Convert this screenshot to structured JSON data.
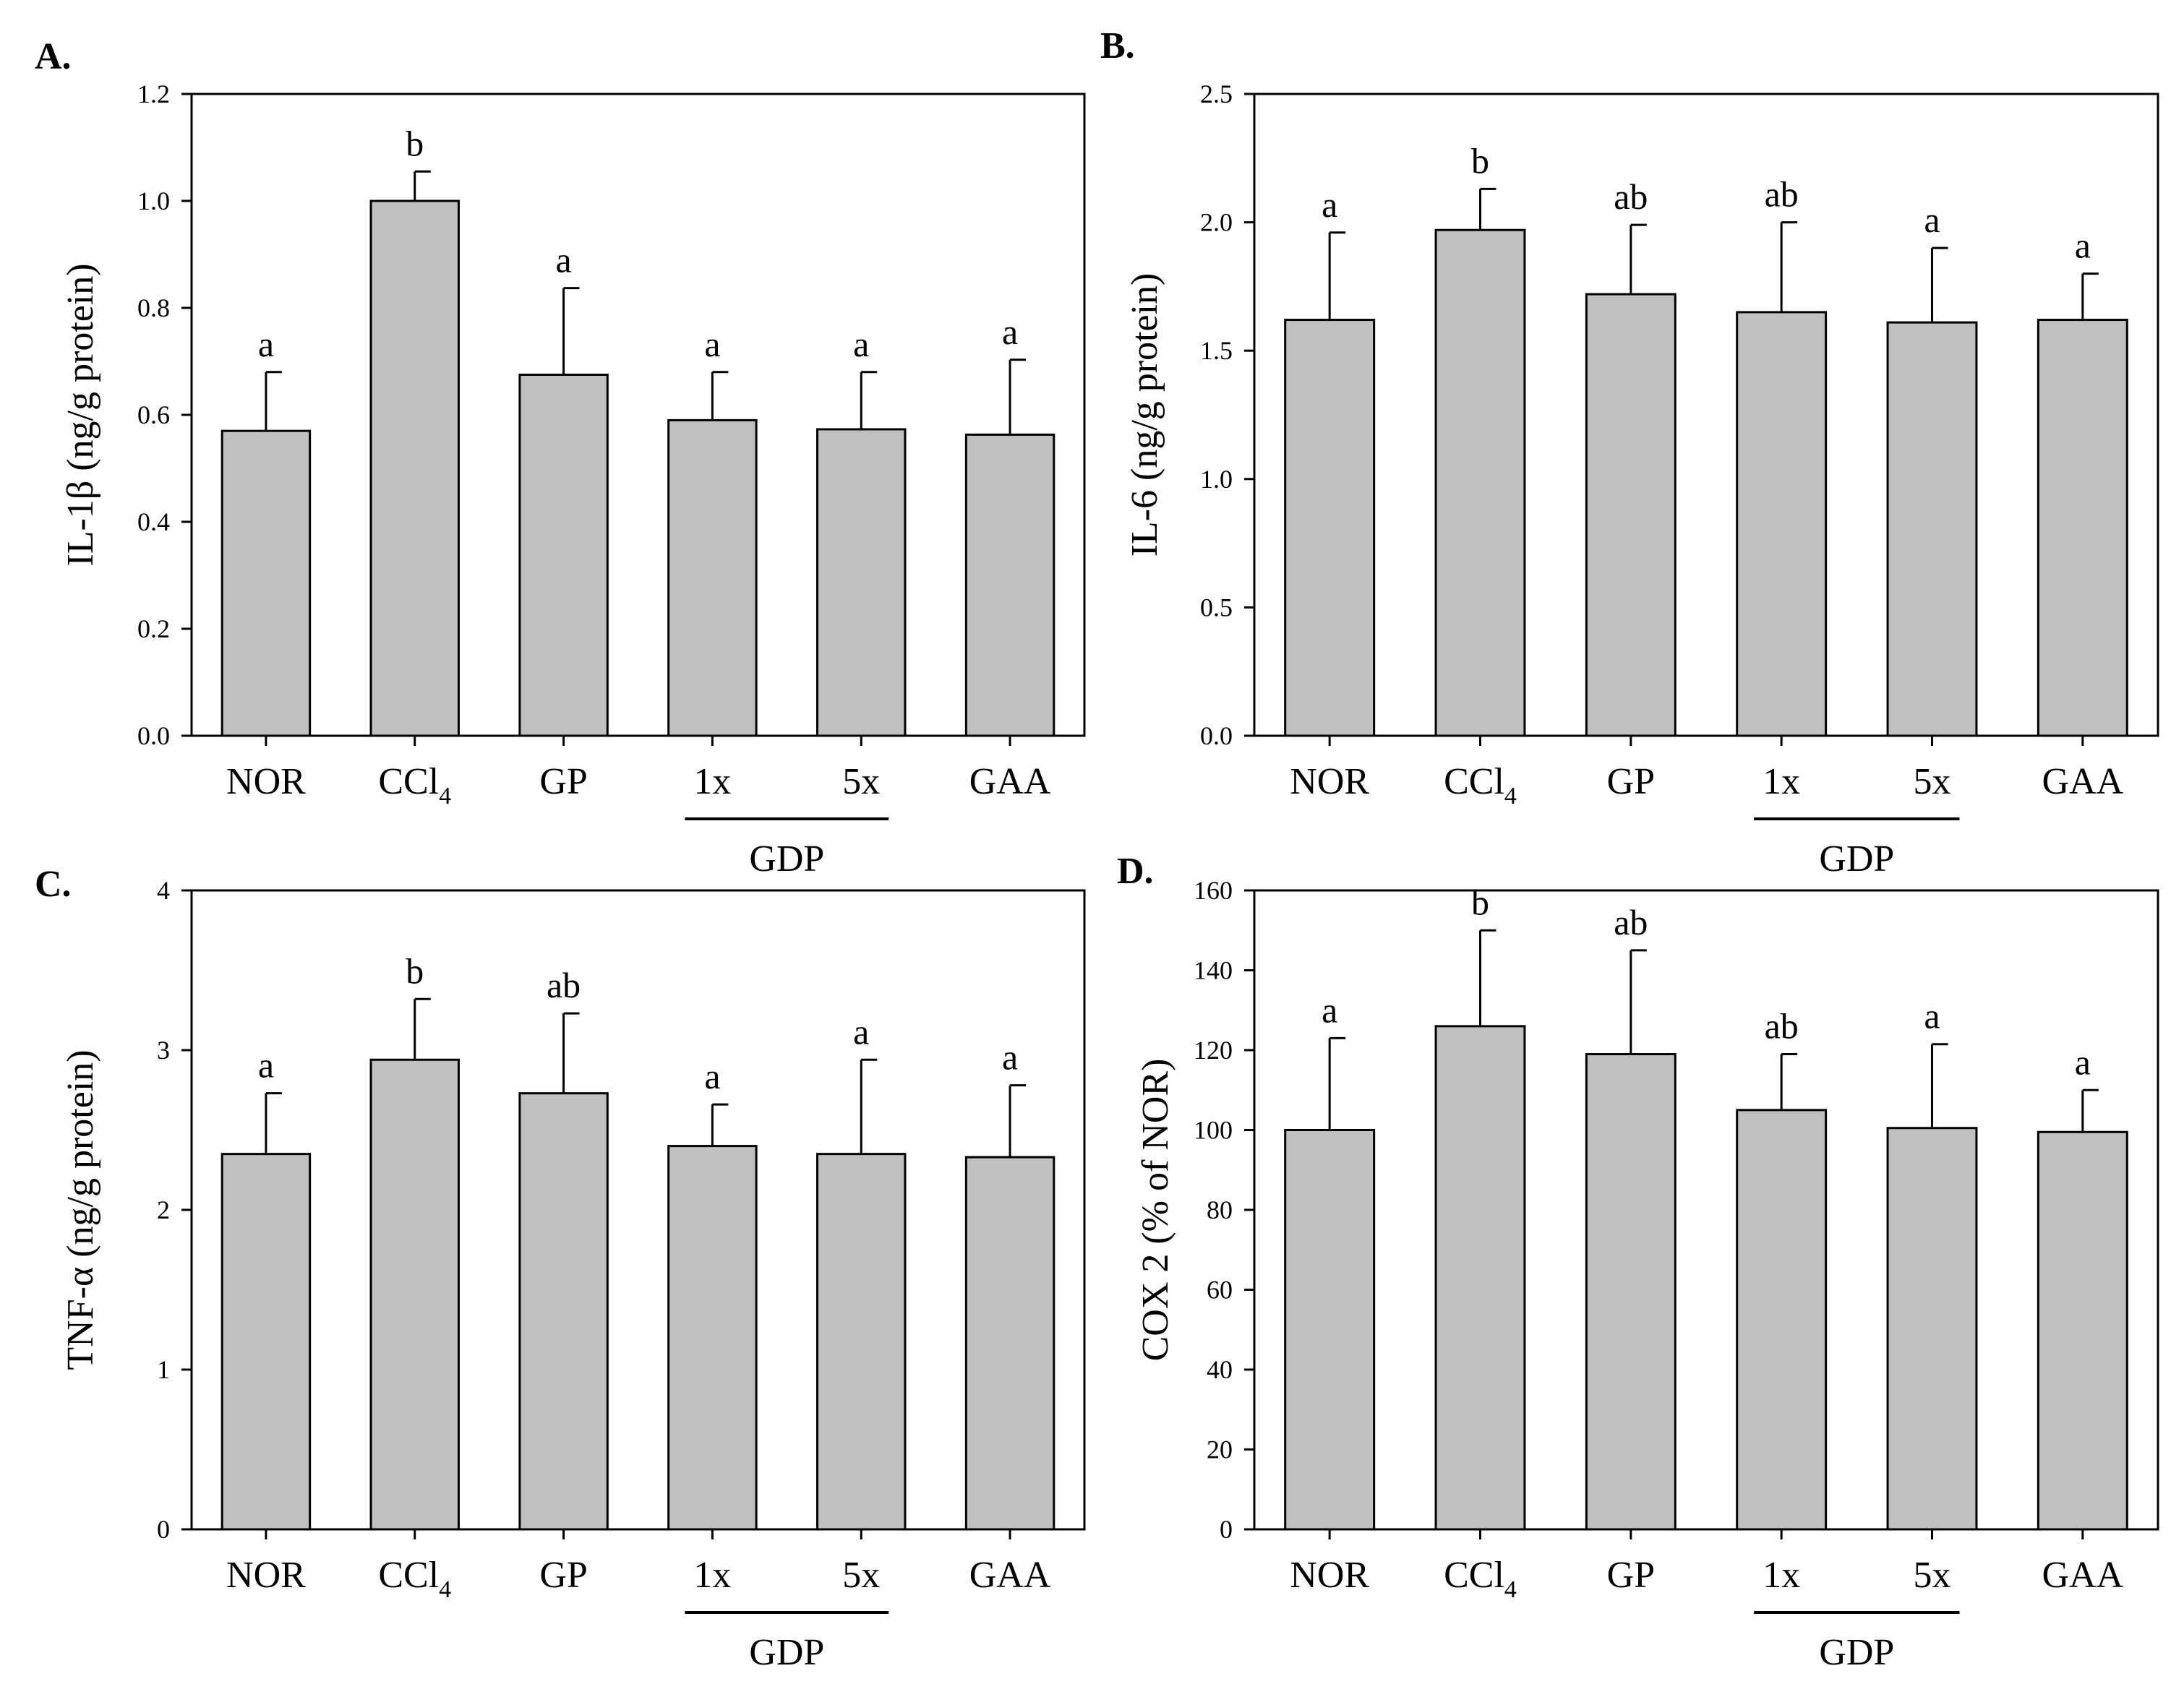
{
  "colors": {
    "bar_fill": "#c0c0c0",
    "bar_stroke": "#000000",
    "axis": "#000000"
  },
  "chart_data": [
    {
      "panel_label": "A.",
      "type": "bar",
      "ylabel": "IL-1β (ng/g protein)",
      "ylim": [
        0,
        1.2
      ],
      "yticks": [
        "0.0",
        "0.2",
        "0.4",
        "0.6",
        "0.8",
        "1.0",
        "1.2"
      ],
      "ytick_values": [
        0,
        0.2,
        0.4,
        0.6,
        0.8,
        1.0,
        1.2
      ],
      "categories": [
        {
          "main": "NOR",
          "sub": ""
        },
        {
          "main": "CCl",
          "sub": "4"
        },
        {
          "main": "GP",
          "sub": ""
        },
        {
          "main": "1x",
          "sub": ""
        },
        {
          "main": "5x",
          "sub": ""
        },
        {
          "main": "GAA",
          "sub": ""
        }
      ],
      "group_label": "GDP",
      "values": [
        0.57,
        1.0,
        0.675,
        0.59,
        0.573,
        0.563
      ],
      "errors": [
        0.11,
        0.055,
        0.162,
        0.09,
        0.107,
        0.14
      ],
      "letters": [
        "a",
        "b",
        "a",
        "a",
        "a",
        "a"
      ]
    },
    {
      "panel_label": "B.",
      "type": "bar",
      "ylabel": "IL-6 (ng/g protein)",
      "ylim": [
        0,
        2.5
      ],
      "yticks": [
        "0.0",
        "0.5",
        "1.0",
        "1.5",
        "2.0",
        "2.5"
      ],
      "ytick_values": [
        0,
        0.5,
        1.0,
        1.5,
        2.0,
        2.5
      ],
      "categories": [
        {
          "main": "NOR",
          "sub": ""
        },
        {
          "main": "CCl",
          "sub": "4"
        },
        {
          "main": "GP",
          "sub": ""
        },
        {
          "main": "1x",
          "sub": ""
        },
        {
          "main": "5x",
          "sub": ""
        },
        {
          "main": "GAA",
          "sub": ""
        }
      ],
      "group_label": "GDP",
      "values": [
        1.62,
        1.97,
        1.72,
        1.65,
        1.61,
        1.62
      ],
      "errors": [
        0.34,
        0.16,
        0.27,
        0.35,
        0.29,
        0.18
      ],
      "letters": [
        "a",
        "b",
        "ab",
        "ab",
        "a",
        "a"
      ]
    },
    {
      "panel_label": "C.",
      "type": "bar",
      "ylabel": "TNF-α (ng/g protein)",
      "ylim": [
        0,
        4
      ],
      "yticks": [
        "0",
        "1",
        "2",
        "3",
        "4"
      ],
      "ytick_values": [
        0,
        1,
        2,
        3,
        4
      ],
      "categories": [
        {
          "main": "NOR",
          "sub": ""
        },
        {
          "main": "CCl",
          "sub": "4"
        },
        {
          "main": "GP",
          "sub": ""
        },
        {
          "main": "1x",
          "sub": ""
        },
        {
          "main": "5x",
          "sub": ""
        },
        {
          "main": "GAA",
          "sub": ""
        }
      ],
      "group_label": "GDP",
      "values": [
        2.35,
        2.94,
        2.73,
        2.4,
        2.35,
        2.33
      ],
      "errors": [
        0.38,
        0.38,
        0.5,
        0.26,
        0.59,
        0.45
      ],
      "letters": [
        "a",
        "b",
        "ab",
        "a",
        "a",
        "a"
      ]
    },
    {
      "panel_label": "D.",
      "type": "bar",
      "ylabel": "COX 2 (% of NOR)",
      "ylim": [
        0,
        160
      ],
      "yticks": [
        "0",
        "20",
        "40",
        "60",
        "80",
        "100",
        "120",
        "140",
        "160"
      ],
      "ytick_values": [
        0,
        20,
        40,
        60,
        80,
        100,
        120,
        140,
        160
      ],
      "categories": [
        {
          "main": "NOR",
          "sub": ""
        },
        {
          "main": "CCl",
          "sub": "4"
        },
        {
          "main": "GP",
          "sub": ""
        },
        {
          "main": "1x",
          "sub": ""
        },
        {
          "main": "5x",
          "sub": ""
        },
        {
          "main": "GAA",
          "sub": ""
        }
      ],
      "group_label": "GDP",
      "values": [
        100,
        126,
        119,
        105,
        100.5,
        99.5
      ],
      "errors": [
        23,
        24,
        26,
        14,
        21,
        10.5
      ],
      "letters": [
        "a",
        "b",
        "ab",
        "ab",
        "a",
        "a"
      ]
    }
  ]
}
